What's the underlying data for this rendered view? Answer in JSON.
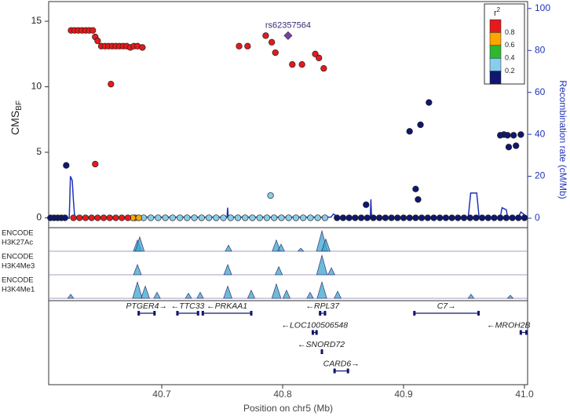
{
  "chart_data": {
    "type": "scatter",
    "xlabel": "Position on chr5 (Mb)",
    "ylabel": "CMS",
    "ylabel_sub": "BF",
    "y2label": "Recombination rate (cM/Mb)",
    "xlim": [
      40.6065,
      41.0026
    ],
    "ylim": [
      -0.75,
      16.5
    ],
    "y2lim": [
      -4.5,
      103.3
    ],
    "xticks": [
      40.7,
      40.8,
      40.9,
      {
        "value": 41,
        "label": "41.0"
      }
    ],
    "yticks": [
      0,
      5,
      10,
      15
    ],
    "y2ticks": [
      0,
      20,
      40,
      60,
      80,
      100
    ],
    "legend": {
      "title": "r",
      "title_sup": "2",
      "position": "top-right",
      "colors": [
        "#e41a1c",
        "#ffa500",
        "#2eb82e",
        "#87ceeb",
        "#0f176e"
      ],
      "labels": [
        "0.8",
        "0.6",
        "0.4",
        "0.2"
      ]
    },
    "series": [
      {
        "color": "#0f176e",
        "x": [
          40.608,
          40.611,
          40.614,
          40.617,
          40.62,
          40.845,
          40.85,
          40.855,
          40.86,
          40.865,
          40.87,
          40.875,
          40.88,
          40.885,
          40.89,
          40.895,
          40.9,
          40.905,
          40.91,
          40.915,
          40.92,
          40.925,
          40.93,
          40.935,
          40.94,
          40.945,
          40.95,
          40.955,
          40.96,
          40.965,
          40.97,
          40.975,
          40.98,
          40.985,
          40.99,
          40.995,
          41.0,
          40.621,
          40.869,
          40.905,
          40.914,
          40.921,
          40.91,
          40.912,
          40.98,
          40.983,
          40.986,
          40.991,
          40.997,
          40.987,
          40.993
        ],
        "values": [
          0,
          0,
          0,
          0,
          0,
          0,
          0,
          0,
          0,
          0,
          0,
          0,
          0,
          0,
          0,
          0,
          0,
          0,
          0,
          0,
          0,
          0,
          0,
          0,
          0,
          0,
          0,
          0,
          0,
          0,
          0,
          0,
          0,
          0,
          0,
          0,
          0,
          4.0,
          1.0,
          6.6,
          7.1,
          8.8,
          2.2,
          1.4,
          6.3,
          6.35,
          6.3,
          6.3,
          6.35,
          5.4,
          5.5
        ]
      },
      {
        "color": "#87ceeb",
        "x": [
          40.685,
          40.691,
          40.697,
          40.703,
          40.709,
          40.715,
          40.721,
          40.727,
          40.733,
          40.739,
          40.745,
          40.751,
          40.757,
          40.763,
          40.769,
          40.775,
          40.781,
          40.787,
          40.793,
          40.799,
          40.805,
          40.811,
          40.817,
          40.823,
          40.829,
          40.835,
          40.79
        ],
        "values": [
          0,
          0,
          0,
          0,
          0,
          0,
          0,
          0,
          0,
          0,
          0,
          0,
          0,
          0,
          0,
          0,
          0,
          0,
          0,
          0,
          0,
          0,
          0,
          0,
          0,
          0,
          1.7
        ]
      },
      {
        "color": "#2eb82e",
        "x": [
          40.678
        ],
        "values": [
          0
        ]
      },
      {
        "color": "#ffa500",
        "x": [
          40.676,
          40.681
        ],
        "values": [
          0,
          0
        ]
      },
      {
        "color": "#e41a1c",
        "x": [
          40.627,
          40.632,
          40.637,
          40.642,
          40.647,
          40.652,
          40.657,
          40.662,
          40.667,
          40.672,
          40.625,
          40.628,
          40.631,
          40.634,
          40.637,
          40.64,
          40.643,
          40.645,
          40.647,
          40.65,
          40.653,
          40.656,
          40.659,
          40.662,
          40.665,
          40.668,
          40.671,
          40.674,
          40.677,
          40.68,
          40.684,
          40.658,
          40.645,
          40.764,
          40.771,
          40.786,
          40.791,
          40.794,
          40.808,
          40.816,
          40.827,
          40.83,
          40.834
        ],
        "values": [
          0,
          0,
          0,
          0,
          0,
          0,
          0,
          0,
          0,
          0,
          14.3,
          14.3,
          14.3,
          14.3,
          14.3,
          14.3,
          14.3,
          13.8,
          13.5,
          13.1,
          13.1,
          13.1,
          13.1,
          13.1,
          13.1,
          13.1,
          13.1,
          13.0,
          13.1,
          13.1,
          13.0,
          10.2,
          4.1,
          13.1,
          13.1,
          13.9,
          13.4,
          12.6,
          11.7,
          11.7,
          12.5,
          12.2,
          11.4
        ]
      }
    ],
    "lead": {
      "label": "rs62357564",
      "x": 40.8045,
      "value": 13.9,
      "color": "#7b3fa8"
    },
    "recombination": {
      "axis": "y2",
      "color": "#1f33b8",
      "x": [
        40.6065,
        40.6235,
        40.6245,
        40.626,
        40.627,
        40.628,
        40.754,
        40.7545,
        40.755,
        40.84,
        40.842,
        40.846,
        40.8725,
        40.873,
        40.8735,
        40.9535,
        40.9555,
        40.9605,
        40.9625,
        40.98,
        40.9815,
        40.985,
        40.986,
        40.995,
        40.997,
        41.0026
      ],
      "values": [
        0,
        0,
        20,
        18,
        8,
        0.5,
        0.5,
        5,
        0.5,
        0.5,
        2,
        0.5,
        0.5,
        9,
        0.5,
        0.5,
        12,
        12,
        0.5,
        0.5,
        5,
        4,
        0.5,
        0.5,
        3,
        0.5
      ]
    },
    "tracks": [
      {
        "label": [
          "ENCODE",
          "H3K27Ac"
        ],
        "color": "#3aa7cc",
        "x": [
          40.6799,
          40.6818,
          40.7552,
          40.7948,
          40.7987,
          40.815,
          40.8325,
          40.8357
        ],
        "values": [
          0.55,
          0.7,
          0.3,
          0.55,
          0.35,
          0.15,
          1.0,
          0.6
        ]
      },
      {
        "label": [
          "ENCODE",
          "H3K4Me3"
        ],
        "color": "#3aa7cc",
        "x": [
          40.6799,
          40.7546,
          40.7968,
          40.8325,
          40.8403
        ],
        "values": [
          0.5,
          0.5,
          0.4,
          0.95,
          0.35
        ]
      },
      {
        "label": [
          "ENCODE",
          "H3K4Me1"
        ],
        "color": "#3aa7cc",
        "x": [
          40.6247,
          40.6799,
          40.6864,
          40.6961,
          40.7221,
          40.7318,
          40.7546,
          40.774,
          40.7948,
          40.8032,
          40.8227,
          40.8325,
          40.8455,
          40.9558,
          40.9883
        ],
        "values": [
          0.2,
          0.8,
          0.6,
          0.3,
          0.25,
          0.3,
          0.6,
          0.4,
          0.7,
          0.4,
          0.3,
          0.8,
          0.35,
          0.2,
          0.15
        ]
      }
    ],
    "genes": [
      {
        "label": "PTGER4→",
        "start": 40.68,
        "end": 40.695
      },
      {
        "label": "←TTC33",
        "start": 40.712,
        "end": 40.731
      },
      {
        "label": "←PRKAA1",
        "start": 40.733,
        "end": 40.775
      },
      {
        "label": "←RPL37",
        "start": 40.83,
        "end": 40.836
      },
      {
        "label": "C7→",
        "start": 40.908,
        "end": 40.963
      },
      {
        "label": "←LOC100506548",
        "start": 40.824,
        "end": 40.829
      },
      {
        "label": "←MROH2B",
        "start": 40.996,
        "end": 41.0026
      },
      {
        "label": "←SNORD72",
        "start": 40.8315,
        "end": 40.8322
      },
      {
        "label": "CARD6→",
        "start": 40.842,
        "end": 40.855
      }
    ]
  }
}
